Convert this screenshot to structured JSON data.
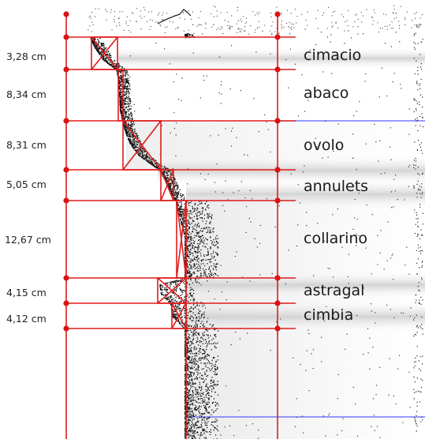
{
  "diagram": {
    "measurements": [
      "3,28 cm",
      "8,34 cm",
      "8,31 cm",
      "5,05 cm",
      "12,67 cm",
      "4,15 cm",
      "4,12 cm"
    ],
    "parts": [
      "cimacio",
      "abaco",
      "ovolo",
      "annulets",
      "collarino",
      "astragal",
      "cimbia"
    ]
  },
  "colors": {
    "guide_lines": "#e01b1b",
    "guide_points": "#d91414",
    "accent_lines": "#5c5cff",
    "point_cloud": "#111111",
    "text": "#1a1a1a"
  }
}
